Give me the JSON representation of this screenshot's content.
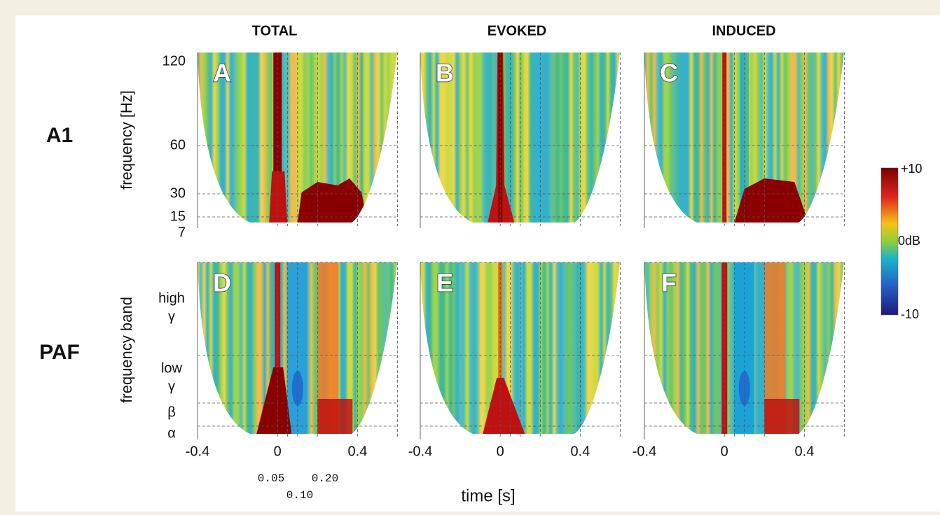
{
  "columns": [
    "TOTAL",
    "EVOKED",
    "INDUCED"
  ],
  "rows": [
    {
      "label": "A1",
      "y_axis_label": "frequency [Hz]",
      "y_ticks": [
        "120",
        "60",
        "30",
        "15",
        "7"
      ]
    },
    {
      "label": "PAF",
      "y_axis_label": "frequency band",
      "y_ticks": [
        {
          "lines": [
            "high",
            "γ"
          ]
        },
        {
          "lines": [
            "low",
            "γ"
          ]
        },
        {
          "lines": [
            "β"
          ]
        },
        {
          "lines": [
            "α"
          ]
        }
      ]
    }
  ],
  "panel_letters": [
    "A",
    "B",
    "C",
    "D",
    "E",
    "F"
  ],
  "x_ticks": [
    "-0.4",
    "0",
    "0.4"
  ],
  "x_annotations": [
    "0.05",
    "0.10",
    "0.20"
  ],
  "x_axis_label": "time [s]",
  "colorbar_labels": [
    "+10",
    "0dB",
    "-10"
  ]
}
